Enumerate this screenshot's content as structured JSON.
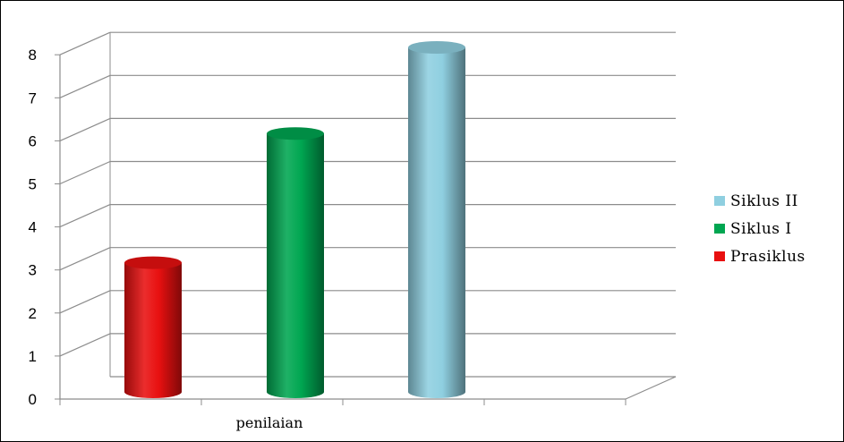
{
  "chart_data": {
    "type": "bar",
    "categories": [
      "penilaian"
    ],
    "series": [
      {
        "name": "Prasiklus",
        "values": [
          3
        ],
        "color": "#e81010"
      },
      {
        "name": "Siklus I",
        "values": [
          6
        ],
        "color": "#00a651"
      },
      {
        "name": "Siklus II",
        "values": [
          8
        ],
        "color": "#8fcfe0"
      }
    ],
    "ylim": [
      0,
      8
    ],
    "yticks": [
      "0",
      "1",
      "2",
      "3",
      "4",
      "5",
      "6",
      "7",
      "8"
    ],
    "grid": true,
    "style": "3d-cylinder",
    "legend_position": "right",
    "legend_order": [
      "Siklus II",
      "Siklus I",
      "Prasiklus"
    ]
  }
}
